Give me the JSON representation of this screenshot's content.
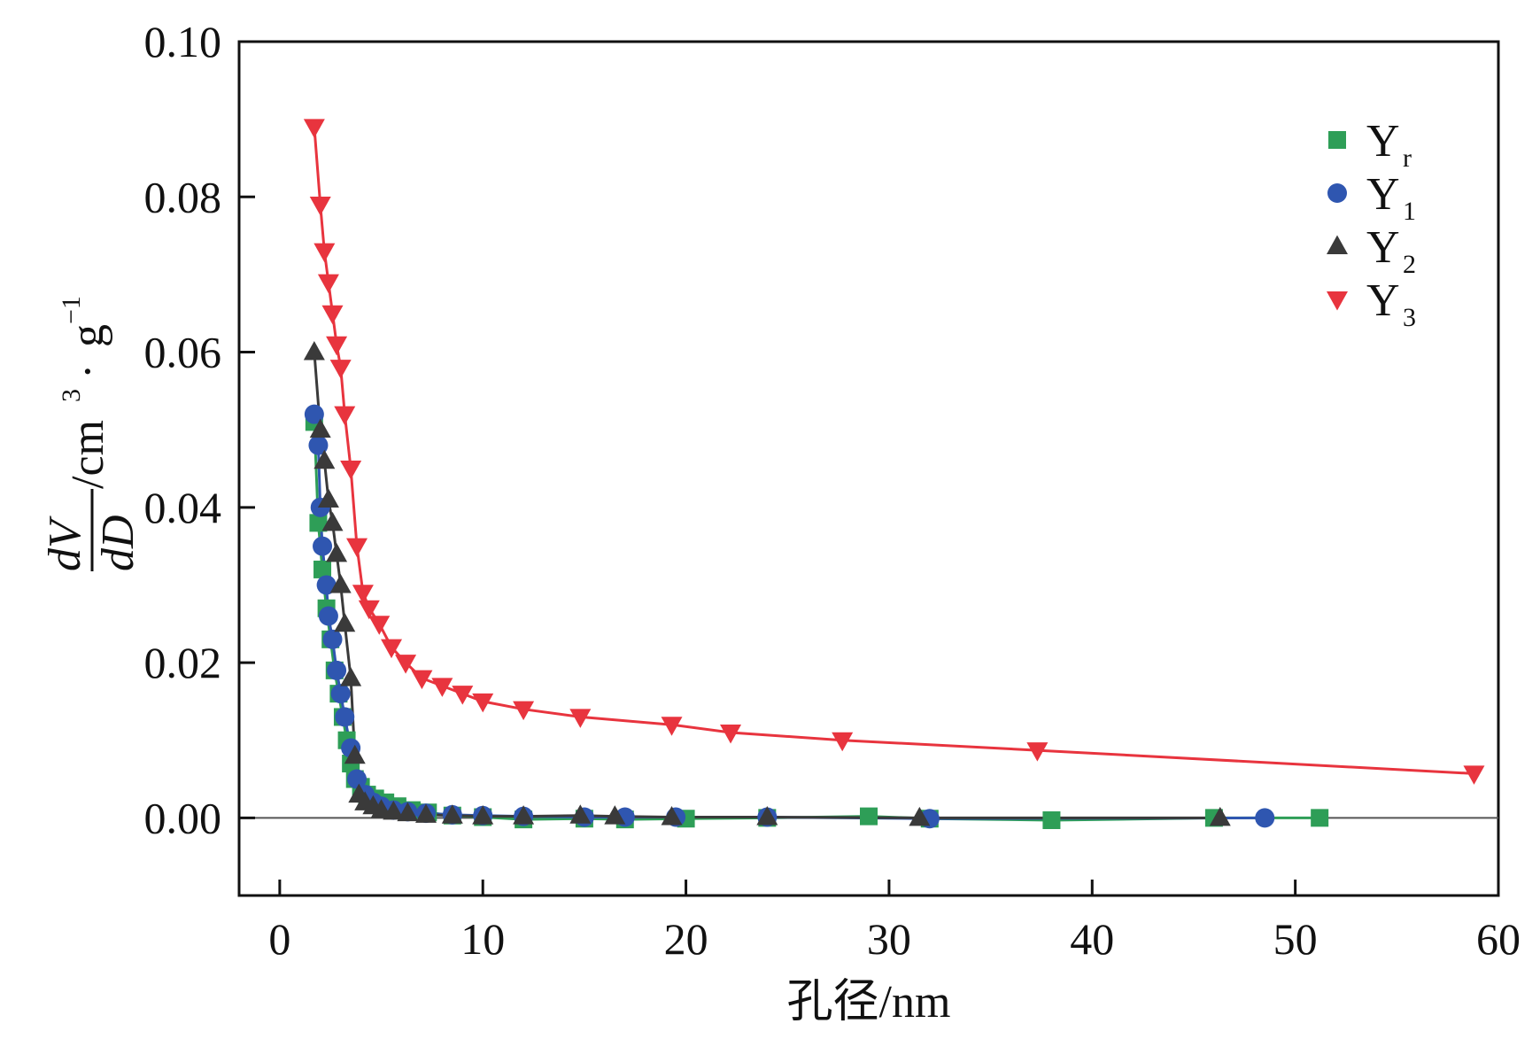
{
  "chart_data": {
    "type": "line",
    "xlabel": "孔径/nm",
    "ylabel": {
      "numerator": "dV",
      "denominator": "dD",
      "unit_prefix": "/cm",
      "unit_sup": "3",
      "dot": "·",
      "unit_g": "g",
      "unit_g_sup": "−1"
    },
    "xlim": [
      -2,
      60
    ],
    "ylim": [
      -0.01,
      0.1
    ],
    "xticks": [
      0,
      10,
      20,
      30,
      40,
      50,
      60
    ],
    "xtick_labels": [
      "0",
      "10",
      "20",
      "30",
      "40",
      "50",
      "60"
    ],
    "yticks": [
      0.0,
      0.02,
      0.04,
      0.06,
      0.08,
      0.1
    ],
    "ytick_labels": [
      "0.00",
      "0.02",
      "0.04",
      "0.06",
      "0.08",
      "0.10"
    ],
    "legend_position": "top-right",
    "grid": false,
    "series": [
      {
        "name": "Y",
        "sub": "r",
        "marker": "square",
        "color": "#2e9e57",
        "x": [
          1.7,
          1.9,
          2.1,
          2.3,
          2.5,
          2.7,
          2.9,
          3.1,
          3.3,
          3.5,
          3.7,
          4.0,
          4.3,
          4.7,
          5.2,
          5.8,
          6.5,
          7.3,
          8.5,
          10.0,
          12.0,
          15.0,
          17.0,
          20.0,
          24.0,
          29.0,
          32.0,
          38.0,
          46.0,
          51.2
        ],
        "y": [
          0.051,
          0.038,
          0.032,
          0.027,
          0.023,
          0.019,
          0.016,
          0.013,
          0.01,
          0.007,
          0.005,
          0.004,
          0.003,
          0.0025,
          0.002,
          0.0015,
          0.001,
          0.0007,
          0.0003,
          0.0001,
          -0.0002,
          -0.0001,
          -0.0002,
          -0.0001,
          0.0,
          0.0002,
          -0.0001,
          -0.0003,
          0.0,
          0.0
        ]
      },
      {
        "name": "Y",
        "sub": "1",
        "marker": "circle",
        "color": "#2f56b0",
        "x": [
          1.7,
          1.9,
          2.0,
          2.1,
          2.3,
          2.4,
          2.6,
          2.8,
          3.0,
          3.2,
          3.5,
          3.8,
          4.2,
          4.6,
          5.0,
          5.6,
          6.3,
          7.2,
          8.5,
          10.0,
          12.0,
          15.0,
          17.0,
          19.5,
          24.0,
          32.0,
          48.5
        ],
        "y": [
          0.052,
          0.048,
          0.04,
          0.035,
          0.03,
          0.026,
          0.023,
          0.019,
          0.016,
          0.013,
          0.009,
          0.005,
          0.003,
          0.002,
          0.0015,
          0.001,
          0.0008,
          0.0006,
          0.0004,
          0.0003,
          0.0002,
          0.0001,
          0.0001,
          0.0001,
          0.0001,
          -0.0001,
          0.0
        ]
      },
      {
        "name": "Y",
        "sub": "2",
        "marker": "triangle-up",
        "color": "#3a3a3a",
        "x": [
          1.7,
          2.0,
          2.2,
          2.4,
          2.6,
          2.8,
          3.0,
          3.2,
          3.5,
          3.7,
          3.9,
          4.2,
          4.6,
          5.0,
          5.6,
          6.3,
          7.2,
          8.5,
          10.0,
          12.0,
          14.8,
          16.5,
          19.3,
          24.0,
          31.5,
          46.3
        ],
        "y": [
          0.06,
          0.05,
          0.046,
          0.041,
          0.038,
          0.034,
          0.03,
          0.025,
          0.018,
          0.008,
          0.003,
          0.002,
          0.0015,
          0.001,
          0.0008,
          0.0006,
          0.0004,
          0.0003,
          0.0002,
          0.0002,
          0.0003,
          0.0002,
          0.0001,
          0.0001,
          0.0,
          0.0
        ]
      },
      {
        "name": "Y",
        "sub": "3",
        "marker": "triangle-down",
        "color": "#e8343e",
        "x": [
          1.7,
          2.0,
          2.2,
          2.4,
          2.6,
          2.8,
          3.0,
          3.2,
          3.5,
          3.8,
          4.1,
          4.4,
          4.9,
          5.5,
          6.2,
          7.0,
          8.0,
          9.0,
          10.0,
          12.0,
          14.8,
          19.3,
          22.2,
          27.7,
          37.3,
          58.8
        ],
        "y": [
          0.089,
          0.079,
          0.073,
          0.069,
          0.065,
          0.061,
          0.058,
          0.052,
          0.045,
          0.035,
          0.029,
          0.027,
          0.025,
          0.022,
          0.02,
          0.018,
          0.017,
          0.016,
          0.015,
          0.014,
          0.013,
          0.012,
          0.011,
          0.01,
          0.0087,
          0.0057
        ]
      }
    ]
  }
}
